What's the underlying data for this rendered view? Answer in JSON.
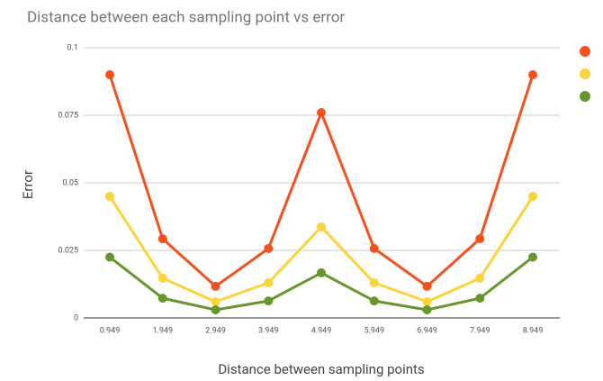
{
  "chart_data": {
    "type": "line",
    "title": "Distance between each sampling point vs error",
    "x_label": "Distance between sampling points",
    "y_label": "Error",
    "categories": [
      "0.949",
      "1.949",
      "2.949",
      "3.949",
      "4.949",
      "5.949",
      "6.949",
      "7.949",
      "8.949"
    ],
    "series": [
      {
        "color": "#f4511e",
        "values": [
          0.09,
          0.0293,
          0.0117,
          0.0257,
          0.076,
          0.0257,
          0.0117,
          0.0293,
          0.09
        ]
      },
      {
        "color": "#fbd33b",
        "values": [
          0.045,
          0.0147,
          0.006,
          0.013,
          0.0337,
          0.013,
          0.006,
          0.0147,
          0.045
        ]
      },
      {
        "color": "#66962d",
        "values": [
          0.0225,
          0.0073,
          0.003,
          0.0063,
          0.0167,
          0.0063,
          0.003,
          0.0073,
          0.0225
        ]
      }
    ],
    "ylim": [
      0,
      0.1
    ],
    "yticks": [
      0,
      0.025,
      0.05,
      0.075,
      0.1
    ],
    "grid": true,
    "legend": "right"
  }
}
